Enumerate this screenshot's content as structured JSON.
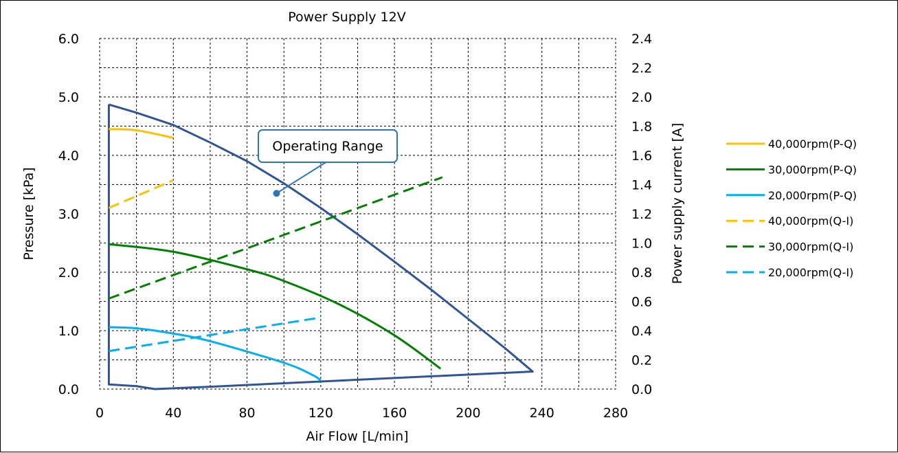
{
  "chart_data": {
    "type": "line",
    "title": "Power Supply 12V",
    "xlabel": "Air Flow [L/min]",
    "ylabel": "Pressure  [kPa]",
    "y2label": "Power supply current  [A]",
    "xlim": [
      0,
      280
    ],
    "ylim": [
      0,
      6
    ],
    "y2lim": [
      0,
      2.4
    ],
    "xticks": [
      0,
      40,
      80,
      120,
      160,
      200,
      240,
      280
    ],
    "xtick_labels": [
      "0",
      "40",
      "80",
      "120",
      "160",
      "200",
      "240",
      "280"
    ],
    "yticks": [
      0,
      1,
      2,
      3,
      4,
      5,
      6
    ],
    "ytick_labels": [
      "0.0",
      "1.0",
      "2.0",
      "3.0",
      "4.0",
      "5.0",
      "6.0"
    ],
    "y2ticks": [
      0,
      0.2,
      0.4,
      0.6,
      0.8,
      1.0,
      1.2,
      1.4,
      1.6,
      1.8,
      2.0,
      2.2,
      2.4
    ],
    "y2tick_labels": [
      "0.0",
      "0.2",
      "0.4",
      "0.6",
      "0.8",
      "1.0",
      "1.2",
      "1.4",
      "1.6",
      "1.8",
      "2.0",
      "2.2",
      "2.4"
    ],
    "grid": true,
    "legend_position": "right",
    "series": [
      {
        "name": "40,000rpm(P-Q)",
        "axis": "left",
        "dash": false,
        "color": "#ffc000",
        "x": [
          5,
          20,
          40
        ],
        "y": [
          4.45,
          4.43,
          4.3
        ]
      },
      {
        "name": "30,000rpm(P-Q)",
        "axis": "left",
        "dash": false,
        "color": "#008000",
        "x": [
          5,
          40,
          80,
          100,
          130,
          160,
          185
        ],
        "y": [
          2.48,
          2.35,
          2.05,
          1.85,
          1.45,
          0.92,
          0.35
        ]
      },
      {
        "name": "20,000rpm(P-Q)",
        "axis": "left",
        "dash": false,
        "color": "#00b0f0",
        "x": [
          5,
          20,
          40,
          60,
          100,
          115,
          120
        ],
        "y": [
          1.06,
          1.04,
          0.95,
          0.82,
          0.45,
          0.25,
          0.15
        ]
      },
      {
        "name": "40,000rpm(Q-I)",
        "axis": "right",
        "dash": true,
        "color": "#ffc000",
        "x": [
          5,
          40
        ],
        "y": [
          1.24,
          1.43
        ]
      },
      {
        "name": "30,000rpm(Q-I)",
        "axis": "right",
        "dash": true,
        "color": "#008000",
        "x": [
          5,
          186
        ],
        "y": [
          0.62,
          1.45
        ]
      },
      {
        "name": "20,000rpm(Q-I)",
        "axis": "right",
        "dash": true,
        "color": "#00b0f0",
        "x": [
          5,
          120
        ],
        "y": [
          0.26,
          0.49
        ]
      }
    ],
    "operating_range": {
      "color": "#2f5597",
      "x": [
        5,
        20,
        40,
        60,
        80,
        100,
        120,
        140,
        160,
        180,
        200,
        220,
        235,
        120,
        60,
        30,
        20,
        5,
        5
      ],
      "y": [
        4.87,
        4.73,
        4.52,
        4.22,
        3.9,
        3.52,
        3.1,
        2.65,
        2.18,
        1.7,
        1.2,
        0.7,
        0.3,
        0.13,
        0.04,
        0.0,
        0.05,
        0.08,
        4.87
      ]
    },
    "annotation": {
      "text": "Operating Range",
      "point": {
        "x": 96,
        "y": 3.35
      },
      "color": "#2e75b6"
    }
  }
}
